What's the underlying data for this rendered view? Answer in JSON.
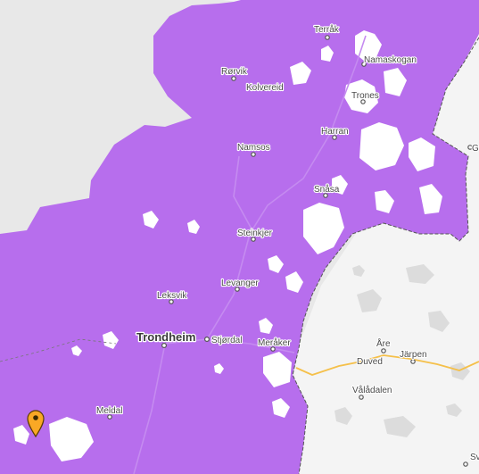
{
  "map": {
    "colors": {
      "sea": "#e8e8e8",
      "land": "#f4f4f4",
      "coverage": "#b76eed",
      "coverage_edge": "#a35bdc",
      "road": "#c58bf0",
      "border": "#555555",
      "highway_se": "#f5c04a",
      "marker": "#f9a825"
    },
    "places": [
      {
        "name": "Terråk",
        "id": "terrak"
      },
      {
        "name": "Rørvik",
        "id": "rorvik"
      },
      {
        "name": "Kolvereid",
        "id": "kolvereid"
      },
      {
        "name": "Namaskogan",
        "id": "namaskogan"
      },
      {
        "name": "Trones",
        "id": "trones"
      },
      {
        "name": "Harran",
        "id": "harran"
      },
      {
        "name": "Namsos",
        "id": "namsos"
      },
      {
        "name": "Snåsa",
        "id": "snasa"
      },
      {
        "name": "Steinkjer",
        "id": "steinkjer"
      },
      {
        "name": "Levanger",
        "id": "levanger"
      },
      {
        "name": "Leksvik",
        "id": "leksvik"
      },
      {
        "name": "Trondheim",
        "id": "trondheim"
      },
      {
        "name": "Stjørdal",
        "id": "stjordal"
      },
      {
        "name": "Meråker",
        "id": "meraker"
      },
      {
        "name": "Meldal",
        "id": "meldal"
      },
      {
        "name": "Åre",
        "id": "are"
      },
      {
        "name": "Duved",
        "id": "duved"
      },
      {
        "name": "Järpen",
        "id": "jarpen"
      },
      {
        "name": "Vålådalen",
        "id": "valadalen"
      },
      {
        "name": "G",
        "id": "g-edge"
      },
      {
        "name": "Sv",
        "id": "sv-edge"
      }
    ],
    "marker": {
      "icon": "map-pin-icon"
    }
  }
}
